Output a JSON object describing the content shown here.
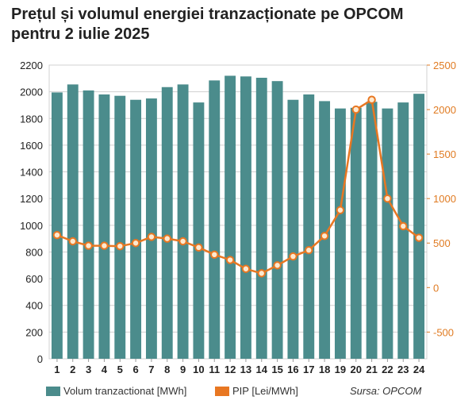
{
  "title_line1": "Prețul și volumul energiei tranzacționate pe OPCOM",
  "title_line2": "pentru 2 iulie 2025",
  "legend": {
    "bar_label": "Volum tranzactionat [MWh]",
    "line_label": "PIP [Lei/MWh]",
    "source": "Sursa: OPCOM"
  },
  "colors": {
    "bar": "#4b8c8c",
    "line": "#e87722",
    "marker_fill": "#fde9cf",
    "grid": "#d0d0d0",
    "axis_text": "#222222",
    "right_axis_text": "#e07b22"
  },
  "chart_data": {
    "type": "bar",
    "categories": [
      "1",
      "2",
      "3",
      "4",
      "5",
      "6",
      "7",
      "8",
      "9",
      "10",
      "11",
      "12",
      "13",
      "14",
      "15",
      "16",
      "17",
      "18",
      "19",
      "20",
      "21",
      "22",
      "23",
      "24"
    ],
    "series": [
      {
        "name": "Volum tranzactionat [MWh]",
        "type": "bar",
        "axis": "left",
        "values": [
          1995,
          2055,
          2010,
          1980,
          1970,
          1940,
          1950,
          2035,
          2055,
          1920,
          2085,
          2120,
          2115,
          2105,
          2080,
          1940,
          1980,
          1930,
          1875,
          1880,
          1925,
          1875,
          1920,
          1985
        ]
      },
      {
        "name": "PIP [Lei/MWh]",
        "type": "line",
        "axis": "right",
        "values": [
          590,
          520,
          470,
          470,
          465,
          500,
          570,
          550,
          520,
          450,
          370,
          310,
          210,
          160,
          250,
          350,
          420,
          580,
          870,
          2000,
          2110,
          1000,
          690,
          560
        ]
      }
    ],
    "y_left": {
      "min": 0,
      "max": 2200,
      "ticks": [
        0,
        200,
        400,
        600,
        800,
        1000,
        1200,
        1400,
        1600,
        1800,
        2000,
        2200
      ]
    },
    "y_right": {
      "min": -800,
      "max": 2500,
      "ticks": [
        -500,
        0,
        500,
        1000,
        1500,
        2000,
        2500
      ]
    },
    "grid": true,
    "legend_position": "bottom"
  }
}
